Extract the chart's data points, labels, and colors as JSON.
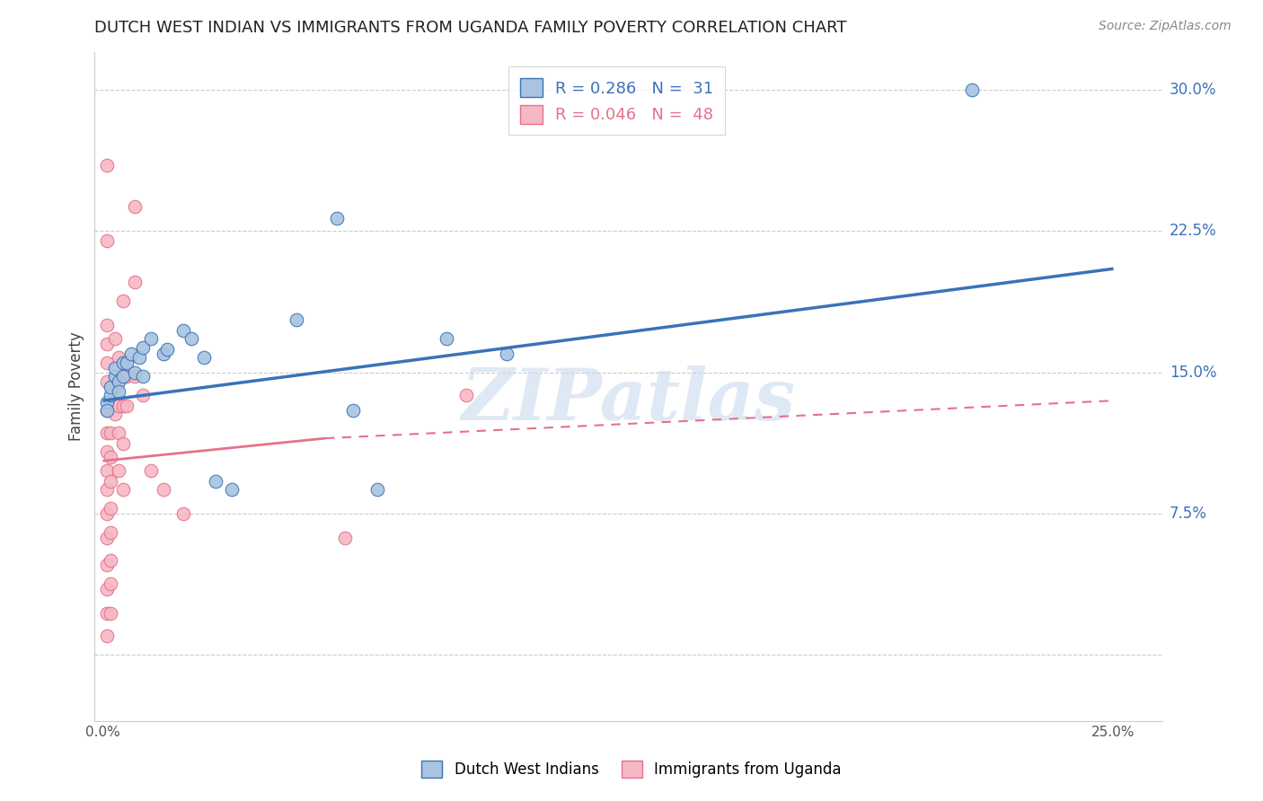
{
  "title": "DUTCH WEST INDIAN VS IMMIGRANTS FROM UGANDA FAMILY POVERTY CORRELATION CHART",
  "source": "Source: ZipAtlas.com",
  "ylabel": "Family Poverty",
  "x_ticks": [
    0.0,
    0.05,
    0.1,
    0.15,
    0.2,
    0.25
  ],
  "y_ticks": [
    0.0,
    0.075,
    0.15,
    0.225,
    0.3
  ],
  "y_tick_labels_right": [
    "",
    "7.5%",
    "15.0%",
    "22.5%",
    "30.0%"
  ],
  "xlim": [
    -0.002,
    0.262
  ],
  "ylim": [
    -0.035,
    0.32
  ],
  "blue_color": "#A8C4E0",
  "pink_color": "#F5B8C4",
  "blue_line_color": "#3B72B8",
  "pink_line_color": "#E8708A",
  "blue_scatter": [
    [
      0.001,
      0.134
    ],
    [
      0.001,
      0.13
    ],
    [
      0.002,
      0.138
    ],
    [
      0.002,
      0.142
    ],
    [
      0.003,
      0.148
    ],
    [
      0.003,
      0.152
    ],
    [
      0.004,
      0.145
    ],
    [
      0.004,
      0.14
    ],
    [
      0.005,
      0.155
    ],
    [
      0.005,
      0.148
    ],
    [
      0.006,
      0.155
    ],
    [
      0.007,
      0.16
    ],
    [
      0.008,
      0.15
    ],
    [
      0.009,
      0.158
    ],
    [
      0.01,
      0.163
    ],
    [
      0.01,
      0.148
    ],
    [
      0.012,
      0.168
    ],
    [
      0.015,
      0.16
    ],
    [
      0.016,
      0.162
    ],
    [
      0.02,
      0.172
    ],
    [
      0.022,
      0.168
    ],
    [
      0.025,
      0.158
    ],
    [
      0.028,
      0.092
    ],
    [
      0.032,
      0.088
    ],
    [
      0.048,
      0.178
    ],
    [
      0.058,
      0.232
    ],
    [
      0.062,
      0.13
    ],
    [
      0.068,
      0.088
    ],
    [
      0.085,
      0.168
    ],
    [
      0.1,
      0.16
    ],
    [
      0.215,
      0.3
    ]
  ],
  "pink_scatter": [
    [
      0.001,
      0.26
    ],
    [
      0.001,
      0.22
    ],
    [
      0.001,
      0.175
    ],
    [
      0.001,
      0.165
    ],
    [
      0.001,
      0.155
    ],
    [
      0.001,
      0.145
    ],
    [
      0.001,
      0.13
    ],
    [
      0.001,
      0.118
    ],
    [
      0.001,
      0.108
    ],
    [
      0.001,
      0.098
    ],
    [
      0.001,
      0.088
    ],
    [
      0.001,
      0.075
    ],
    [
      0.001,
      0.062
    ],
    [
      0.001,
      0.048
    ],
    [
      0.001,
      0.035
    ],
    [
      0.001,
      0.022
    ],
    [
      0.001,
      0.01
    ],
    [
      0.002,
      0.118
    ],
    [
      0.002,
      0.105
    ],
    [
      0.002,
      0.092
    ],
    [
      0.002,
      0.078
    ],
    [
      0.002,
      0.065
    ],
    [
      0.002,
      0.05
    ],
    [
      0.002,
      0.038
    ],
    [
      0.002,
      0.022
    ],
    [
      0.003,
      0.168
    ],
    [
      0.003,
      0.142
    ],
    [
      0.003,
      0.128
    ],
    [
      0.004,
      0.158
    ],
    [
      0.004,
      0.132
    ],
    [
      0.004,
      0.118
    ],
    [
      0.004,
      0.098
    ],
    [
      0.005,
      0.188
    ],
    [
      0.005,
      0.148
    ],
    [
      0.005,
      0.132
    ],
    [
      0.005,
      0.112
    ],
    [
      0.005,
      0.088
    ],
    [
      0.006,
      0.148
    ],
    [
      0.006,
      0.132
    ],
    [
      0.008,
      0.238
    ],
    [
      0.008,
      0.198
    ],
    [
      0.008,
      0.148
    ],
    [
      0.01,
      0.138
    ],
    [
      0.012,
      0.098
    ],
    [
      0.015,
      0.088
    ],
    [
      0.02,
      0.075
    ],
    [
      0.06,
      0.062
    ],
    [
      0.09,
      0.138
    ]
  ],
  "blue_trend": [
    0.0,
    0.25,
    0.135,
    0.205
  ],
  "pink_solid_trend": [
    0.0,
    0.055,
    0.103,
    0.115
  ],
  "pink_dashed_trend": [
    0.055,
    0.25,
    0.115,
    0.135
  ],
  "legend_label_blue": "R = 0.286   N =  31",
  "legend_label_pink": "R = 0.046   N =  48",
  "legend_bottom_blue": "Dutch West Indians",
  "legend_bottom_pink": "Immigrants from Uganda",
  "watermark": "ZIPatlas",
  "background_color": "#FFFFFF",
  "grid_color": "#CCCCCC"
}
